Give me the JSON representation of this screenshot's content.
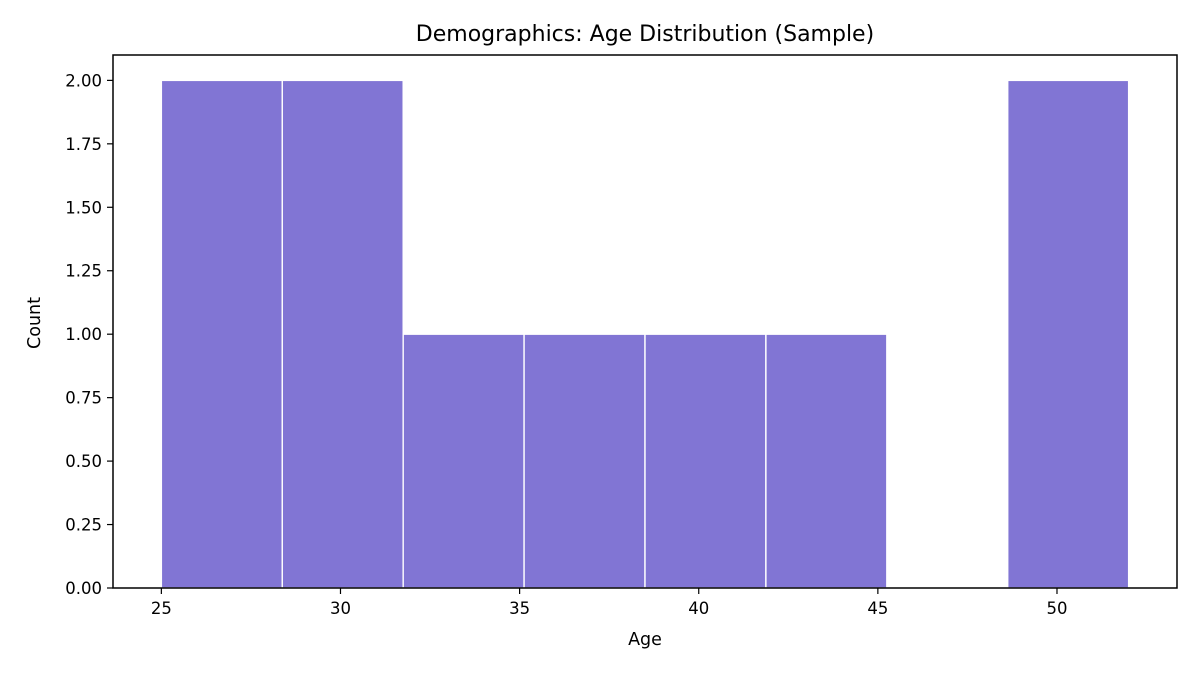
{
  "chart_data": {
    "type": "histogram",
    "title": "Demographics: Age Distribution (Sample)",
    "xlabel": "Age",
    "ylabel": "Count",
    "xlim": [
      23.65,
      53.35
    ],
    "ylim": [
      0,
      2.1
    ],
    "x_ticks": [
      25,
      30,
      35,
      40,
      45,
      50
    ],
    "y_ticks": [
      0.0,
      0.25,
      0.5,
      0.75,
      1.0,
      1.25,
      1.5,
      1.75,
      2.0
    ],
    "y_tick_labels": [
      "0.00",
      "0.25",
      "0.50",
      "0.75",
      "1.00",
      "1.25",
      "1.50",
      "1.75",
      "2.00"
    ],
    "bins": [
      {
        "start": 25.0,
        "end": 28.375,
        "count": 2
      },
      {
        "start": 28.375,
        "end": 31.75,
        "count": 2
      },
      {
        "start": 31.75,
        "end": 35.125,
        "count": 1
      },
      {
        "start": 35.125,
        "end": 38.5,
        "count": 1
      },
      {
        "start": 38.5,
        "end": 41.875,
        "count": 1
      },
      {
        "start": 41.875,
        "end": 45.25,
        "count": 1
      },
      {
        "start": 45.25,
        "end": 48.625,
        "count": 0
      },
      {
        "start": 48.625,
        "end": 52.0,
        "count": 2
      }
    ],
    "bar_color": "#8175d4",
    "edge_color": "#ffffff",
    "grid": false,
    "legend": "none"
  }
}
